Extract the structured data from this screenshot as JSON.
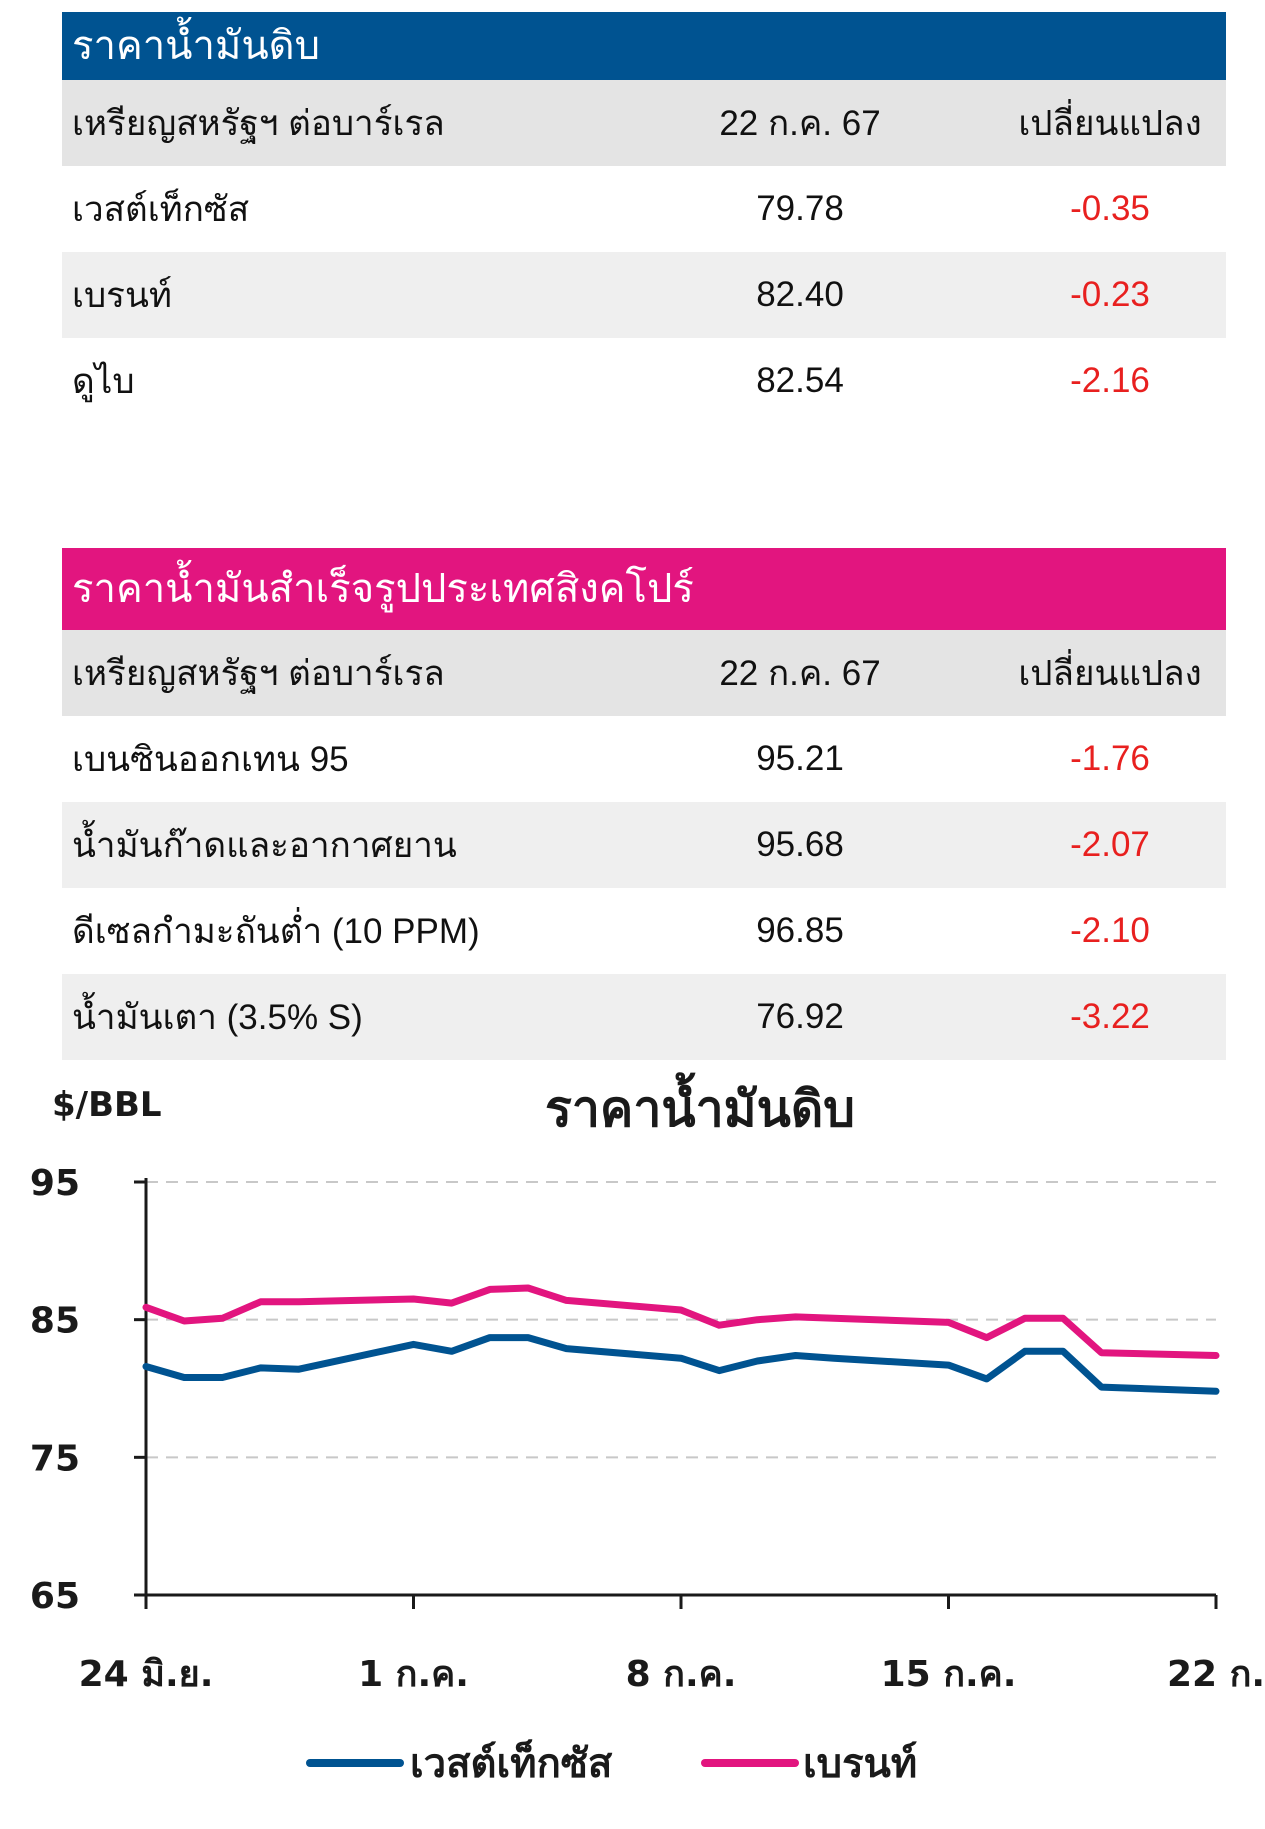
{
  "crude_table": {
    "title": "ราคาน้ำมันดิบ",
    "header": {
      "label": "เหรียญสหรัฐฯ ต่อบาร์เรล",
      "date": "22 ก.ค. 67",
      "change": "เปลี่ยนแปลง"
    },
    "rows": [
      {
        "name": "เวสต์เท็กซัส",
        "price": "79.78",
        "change": "-0.35"
      },
      {
        "name": "เบรนท์",
        "price": "82.40",
        "change": "-0.23"
      },
      {
        "name": "ดูไบ",
        "price": "82.54",
        "change": "-2.16"
      }
    ],
    "header_color": "#005391"
  },
  "products_table": {
    "title": "ราคาน้ำมันสำเร็จรูปประเทศสิงคโปร์",
    "header": {
      "label": "เหรียญสหรัฐฯ ต่อบาร์เรล",
      "date": "22 ก.ค. 67",
      "change": "เปลี่ยนแปลง"
    },
    "rows": [
      {
        "name": "เบนซินออกเทน 95",
        "price": "95.21",
        "change": "-1.76"
      },
      {
        "name": "น้ำมันก๊าดและอากาศยาน",
        "price": "95.68",
        "change": "-2.07"
      },
      {
        "name": "ดีเซลกำมะถันต่ำ (10 PPM)",
        "price": "96.85",
        "change": "-2.10"
      },
      {
        "name": "น้ำมันเตา (3.5% S)",
        "price": "76.92",
        "change": "-3.22"
      }
    ],
    "header_color": "#e2157f"
  },
  "negative_color": "#e8201f",
  "chart_data": {
    "type": "line",
    "title": "ราคาน้ำมันดิบ",
    "ylabel": "$/BBL",
    "xlabel": "",
    "ylim": [
      65,
      95
    ],
    "yticks": [
      95,
      85,
      75,
      65
    ],
    "xtick_labels": [
      "24 มิ.ย.",
      "1 ก.ค.",
      "8 ก.ค.",
      "15 ก.ค.",
      "22 ก."
    ],
    "xtick_days": [
      0,
      7,
      14,
      21,
      28
    ],
    "grid": "horizontal-dashed",
    "legend_position": "bottom",
    "series": [
      {
        "name": "เวสต์เท็กซัส",
        "color": "#005391",
        "days": [
          0,
          1,
          2,
          3,
          4,
          7,
          8,
          9,
          10,
          11,
          14,
          15,
          16,
          17,
          18,
          21,
          22,
          23,
          24,
          25,
          28
        ],
        "values": [
          81.6,
          80.8,
          80.8,
          81.5,
          81.4,
          83.2,
          82.7,
          83.7,
          83.7,
          82.9,
          82.2,
          81.3,
          82.0,
          82.4,
          82.2,
          81.7,
          80.7,
          82.7,
          82.7,
          80.1,
          79.8
        ]
      },
      {
        "name": "เบรนท์",
        "color": "#e2157f",
        "days": [
          0,
          1,
          2,
          3,
          4,
          7,
          8,
          9,
          10,
          11,
          14,
          15,
          16,
          17,
          18,
          21,
          22,
          23,
          24,
          25,
          28
        ],
        "values": [
          85.9,
          84.9,
          85.1,
          86.3,
          86.3,
          86.5,
          86.2,
          87.2,
          87.3,
          86.4,
          85.7,
          84.6,
          85.0,
          85.2,
          85.1,
          84.8,
          83.7,
          85.1,
          85.1,
          82.6,
          82.4
        ]
      }
    ]
  }
}
